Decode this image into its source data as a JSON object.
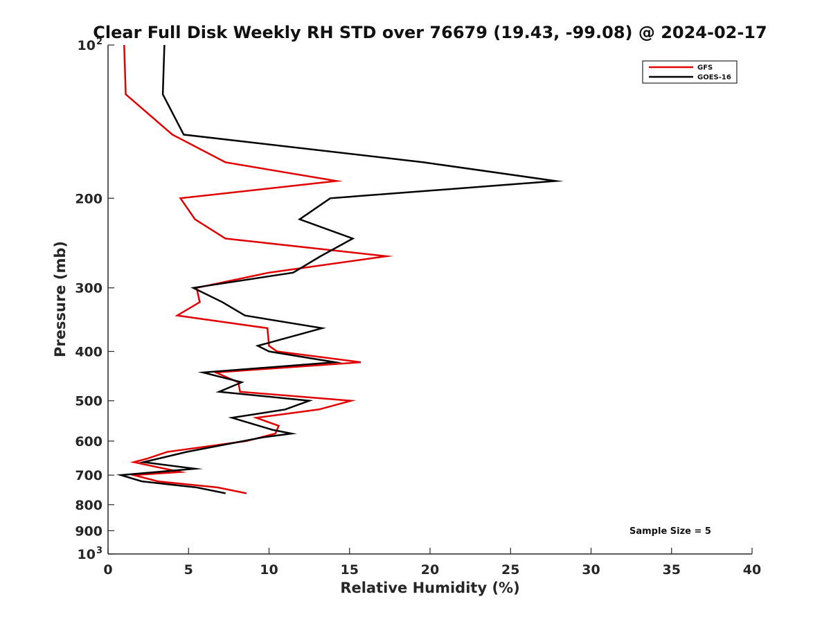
{
  "chart_data": {
    "type": "line",
    "title": "Clear Full Disk Weekly RH STD over 76679 (19.43, -99.08) @ 2024-02-17",
    "xlabel": "Relative Humidity (%)",
    "ylabel": "Pressure (mb)",
    "xlim": [
      0,
      40
    ],
    "ylim": [
      100,
      1000
    ],
    "y_scale": "log",
    "y_reversed": true,
    "x_ticks": [
      0,
      5,
      10,
      15,
      20,
      25,
      30,
      35,
      40
    ],
    "y_ticks": [
      {
        "value": 100,
        "label": "10",
        "sup": "2"
      },
      {
        "value": 200,
        "label": "200"
      },
      {
        "value": 300,
        "label": "300"
      },
      {
        "value": 400,
        "label": "400"
      },
      {
        "value": 500,
        "label": "500"
      },
      {
        "value": 600,
        "label": "600"
      },
      {
        "value": 700,
        "label": "700"
      },
      {
        "value": 800,
        "label": "800"
      },
      {
        "value": 900,
        "label": "900"
      },
      {
        "value": 1000,
        "label": "10",
        "sup": "3"
      }
    ],
    "grid": false,
    "legend_position": "top-right",
    "annotation": "Sample Size = 5",
    "series": [
      {
        "name": "GFS",
        "color": "#e00000",
        "points": [
          [
            1.0,
            100
          ],
          [
            1.1,
            125
          ],
          [
            4.0,
            150
          ],
          [
            7.3,
            170
          ],
          [
            14.2,
            185
          ],
          [
            4.5,
            200
          ],
          [
            5.4,
            220
          ],
          [
            7.3,
            240
          ],
          [
            17.3,
            260
          ],
          [
            10.0,
            280
          ],
          [
            5.5,
            300
          ],
          [
            5.7,
            320
          ],
          [
            4.3,
            340
          ],
          [
            9.9,
            360
          ],
          [
            10.0,
            390
          ],
          [
            10.5,
            400
          ],
          [
            15.7,
            420
          ],
          [
            6.7,
            440
          ],
          [
            8.1,
            460
          ],
          [
            8.2,
            480
          ],
          [
            15.1,
            500
          ],
          [
            13.1,
            520
          ],
          [
            9.2,
            540
          ],
          [
            10.6,
            560
          ],
          [
            10.4,
            580
          ],
          [
            8.6,
            600
          ],
          [
            3.7,
            630
          ],
          [
            2.4,
            650
          ],
          [
            1.6,
            660
          ],
          [
            4.5,
            690
          ],
          [
            1.6,
            700
          ],
          [
            3.1,
            720
          ],
          [
            6.8,
            740
          ],
          [
            8.6,
            760
          ]
        ]
      },
      {
        "name": "GOES-16",
        "color": "#000000",
        "points": [
          [
            3.5,
            100
          ],
          [
            3.4,
            125
          ],
          [
            4.7,
            150
          ],
          [
            19.6,
            170
          ],
          [
            27.8,
            185
          ],
          [
            13.8,
            200
          ],
          [
            11.9,
            220
          ],
          [
            15.2,
            240
          ],
          [
            13.2,
            260
          ],
          [
            11.5,
            280
          ],
          [
            5.3,
            300
          ],
          [
            7.1,
            320
          ],
          [
            8.5,
            340
          ],
          [
            13.3,
            360
          ],
          [
            9.3,
            390
          ],
          [
            10.0,
            400
          ],
          [
            14.1,
            420
          ],
          [
            5.9,
            440
          ],
          [
            8.3,
            460
          ],
          [
            6.9,
            480
          ],
          [
            12.5,
            500
          ],
          [
            11.0,
            520
          ],
          [
            7.7,
            540
          ],
          [
            10.2,
            570
          ],
          [
            11.4,
            580
          ],
          [
            9.6,
            590
          ],
          [
            4.9,
            630
          ],
          [
            2.2,
            660
          ],
          [
            5.4,
            680
          ],
          [
            0.8,
            700
          ],
          [
            2.1,
            720
          ],
          [
            5.5,
            740
          ],
          [
            7.3,
            760
          ]
        ]
      }
    ]
  }
}
